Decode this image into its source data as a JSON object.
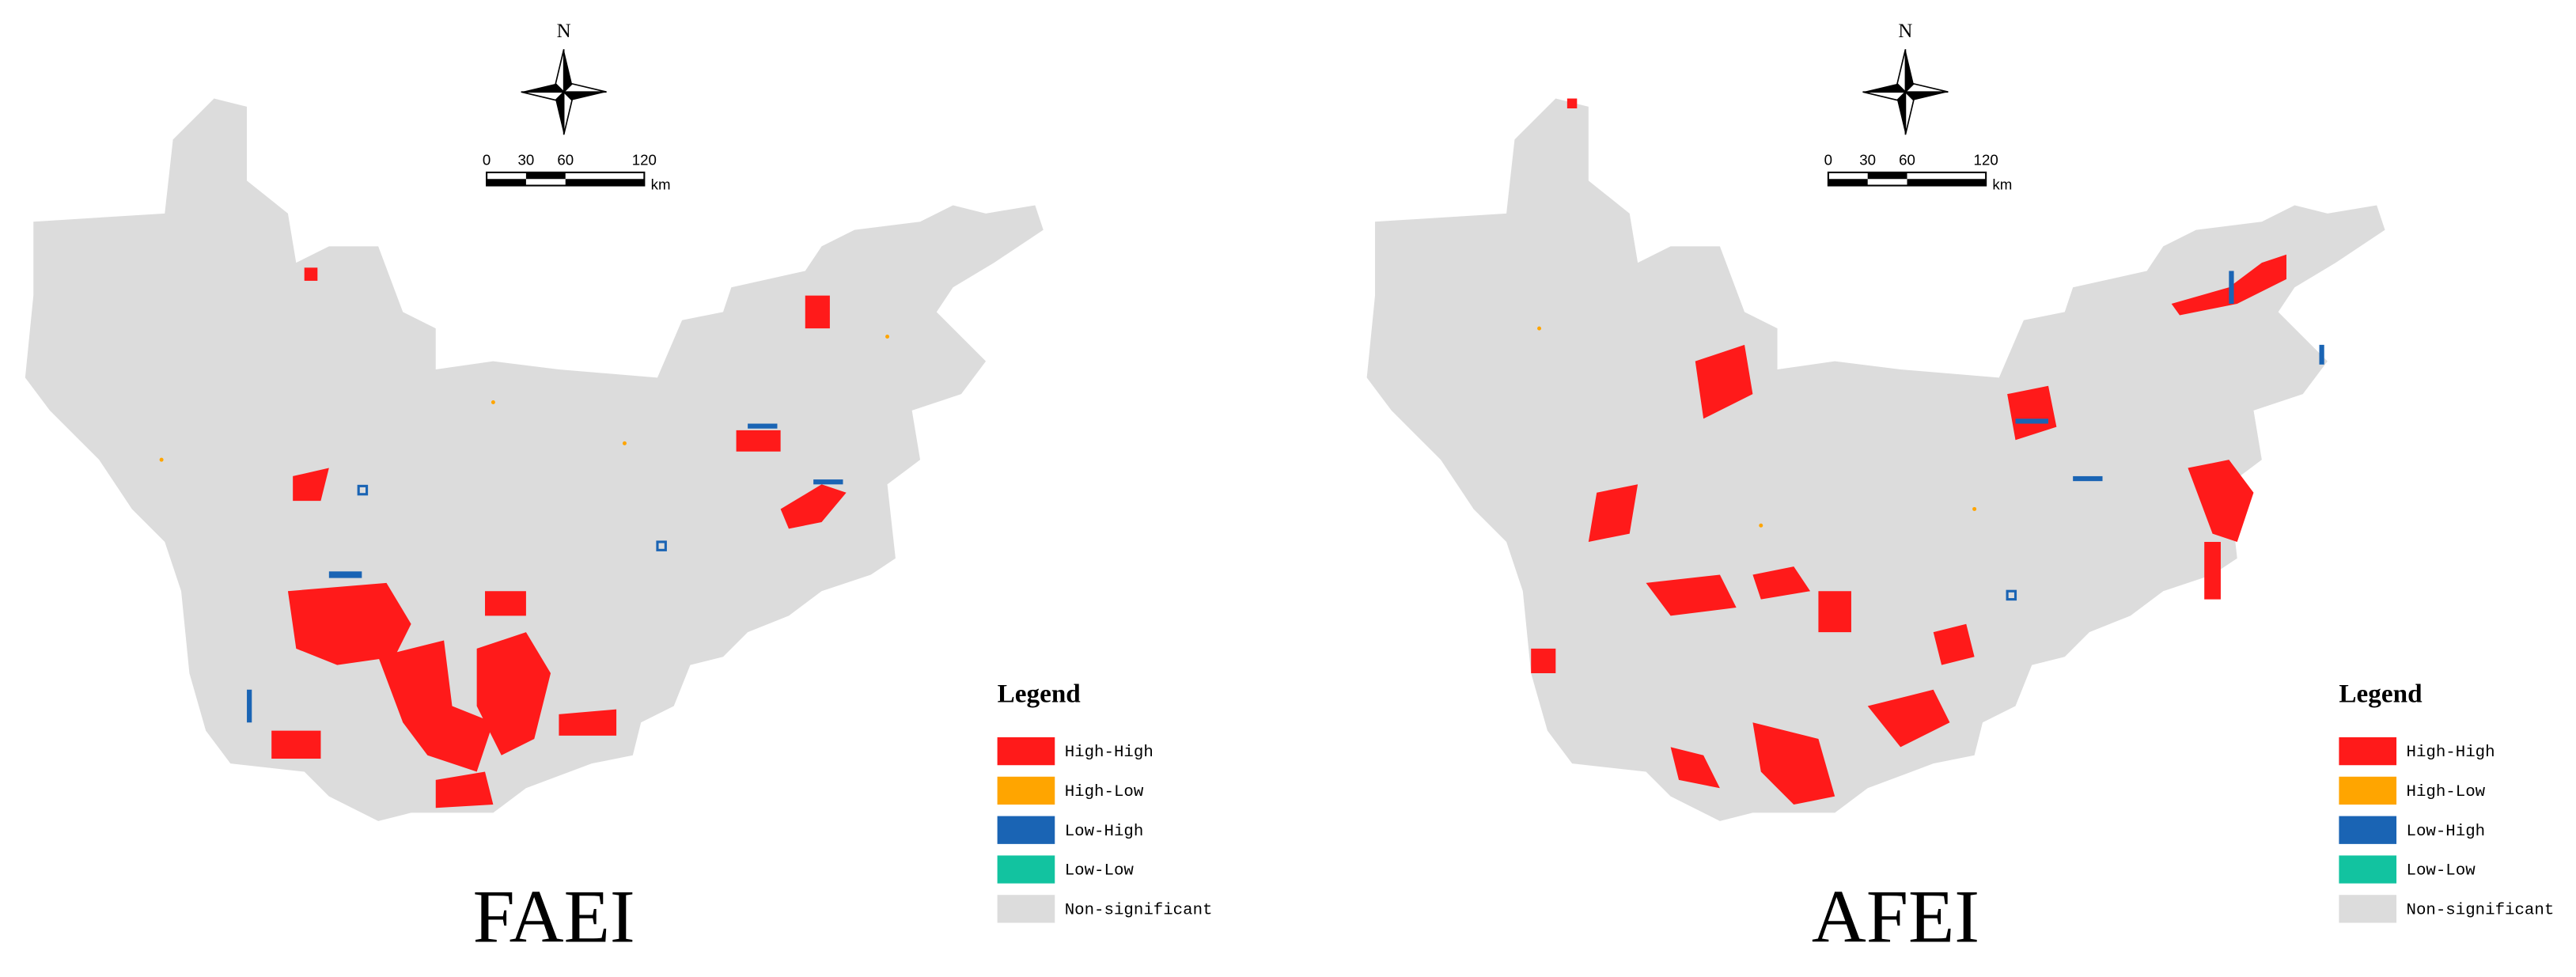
{
  "maps": [
    {
      "north": "N",
      "scale": {
        "ticks": [
          0,
          30,
          60,
          120
        ],
        "unit": "km"
      },
      "legend": {
        "title": "Legend",
        "items": [
          {
            "label": "High-High",
            "color": "#ff1a1a"
          },
          {
            "label": "High-Low",
            "color": "#ffa500"
          },
          {
            "label": "Low-High",
            "color": "#1a64b4"
          },
          {
            "label": "Low-Low",
            "color": "#12c3a0"
          },
          {
            "label": "Non-significant",
            "color": "#dcdcdc"
          }
        ]
      },
      "title": "FAEI"
    },
    {
      "north": "N",
      "scale": {
        "ticks": [
          0,
          30,
          60,
          120
        ],
        "unit": "km"
      },
      "legend": {
        "title": "Legend",
        "items": [
          {
            "label": "High-High",
            "color": "#ff1a1a"
          },
          {
            "label": "High-Low",
            "color": "#ffa500"
          },
          {
            "label": "Low-High",
            "color": "#1a64b4"
          },
          {
            "label": "Low-Low",
            "color": "#12c3a0"
          },
          {
            "label": "Non-significant",
            "color": "#dcdcdc"
          }
        ]
      },
      "title": "AFEI"
    }
  ]
}
